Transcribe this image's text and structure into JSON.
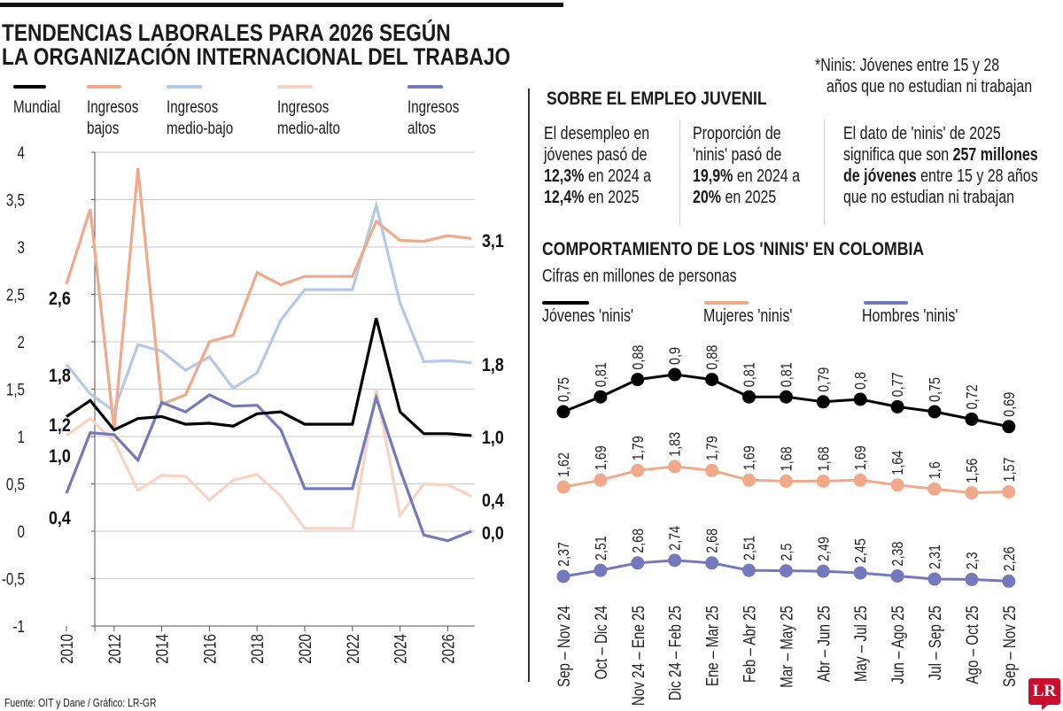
{
  "header": {
    "title_line1": "TENDENCIAS LABORALES PARA 2026 SEGÚN",
    "title_line2": "LA ORGANIZACIÓN INTERNACIONAL DEL TRABAJO"
  },
  "note": {
    "line1": "*Ninis: Jóvenes entre 15 y 28",
    "line2": "años que no estudian ni trabajan"
  },
  "youth": {
    "heading": "SOBRE EL EMPLEO JUVENIL",
    "col1": {
      "l1": "El desempleo en",
      "l2": "jóvenes pasó de",
      "l3b": "12,3%",
      "l3": " en 2024 a",
      "l4b": "12,4%",
      "l4": " en 2025"
    },
    "col2": {
      "l1": "Proporción de",
      "l2": "'ninis' pasó de",
      "l3b": "19,9%",
      "l3": " en 2024 a",
      "l4b": "20%",
      "l4": " en 2025"
    },
    "col3": {
      "l1": "El dato de 'ninis' de 2025",
      "l2": "significa que son ",
      "l2b": "257 millones",
      "l3b": "de jóvenes",
      "l3": " entre 15 y 28 años",
      "l4": "que no estudian ni trabajan"
    }
  },
  "footer": {
    "source": "Fuente: OIT y Dane / Gráfico: LR-GR",
    "logo": "LR"
  },
  "colors": {
    "mundial": "#000000",
    "bajos": "#f0a98a",
    "medio_bajo": "#b4c8e8",
    "medio_alto": "#f8d3c2",
    "altos": "#7479bd",
    "grid": "#c8c8c8",
    "logo": "#c8102e"
  },
  "chart_data": [
    {
      "type": "line",
      "title": "TENDENCIAS LABORALES PARA 2026 SEGÚN LA ORGANIZACIÓN INTERNACIONAL DEL TRABAJO",
      "x": [
        2010,
        2011,
        2012,
        2013,
        2014,
        2015,
        2016,
        2017,
        2018,
        2019,
        2020,
        2021,
        2022,
        2023,
        2024,
        2025,
        2026,
        2027
      ],
      "xticks": [
        "2010",
        "2012",
        "2014",
        "2016",
        "2018",
        "2020",
        "2022",
        "2024",
        "2026"
      ],
      "yticks": [
        "4",
        "3,5",
        "3",
        "2,5",
        "2",
        "1,5",
        "1",
        "0,5",
        "0",
        "-0,5",
        "-1"
      ],
      "ylim": [
        -1,
        4
      ],
      "grid": true,
      "legend_position": "top",
      "series": [
        {
          "name": "Mundial",
          "legend": [
            "Mundial"
          ],
          "color": "#000000",
          "values": [
            1.21,
            1.38,
            1.07,
            1.19,
            1.21,
            1.13,
            1.14,
            1.11,
            1.24,
            1.26,
            1.13,
            1.13,
            1.13,
            2.25,
            1.26,
            1.03,
            1.03,
            1.01
          ],
          "start_label": "1,2",
          "end_label": "1,0"
        },
        {
          "name": "Ingresos bajos",
          "legend": [
            "Ingresos",
            "bajos"
          ],
          "color": "#f0a98a",
          "values": [
            2.61,
            3.4,
            1.07,
            3.83,
            1.34,
            1.44,
            2.0,
            2.07,
            2.73,
            2.6,
            2.69,
            2.69,
            2.69,
            3.27,
            3.07,
            3.06,
            3.12,
            3.09
          ],
          "start_label": "2,6",
          "end_label": "3,1"
        },
        {
          "name": "Ingresos medio-bajo",
          "legend": [
            "Ingresos",
            "medio-bajo"
          ],
          "color": "#b4c8e8",
          "values": [
            1.76,
            1.45,
            1.27,
            1.97,
            1.9,
            1.7,
            1.84,
            1.51,
            1.67,
            2.23,
            2.55,
            2.55,
            2.55,
            3.44,
            2.41,
            1.79,
            1.8,
            1.78
          ],
          "start_label": "1,8",
          "end_label": "1,8"
        },
        {
          "name": "Ingresos medio-alto",
          "legend": [
            "Ingresos",
            "medio-alto"
          ],
          "color": "#f8d3c2",
          "values": [
            1.01,
            1.19,
            0.95,
            0.43,
            0.59,
            0.58,
            0.33,
            0.54,
            0.6,
            0.37,
            0.03,
            0.03,
            0.03,
            1.5,
            0.17,
            0.5,
            0.49,
            0.37
          ],
          "start_label": "1,0",
          "end_label": "0,4"
        },
        {
          "name": "Ingresos altos",
          "legend": [
            "Ingresos",
            "altos"
          ],
          "color": "#7479bd",
          "values": [
            0.4,
            1.04,
            1.02,
            0.75,
            1.36,
            1.26,
            1.44,
            1.32,
            1.33,
            1.07,
            0.45,
            0.45,
            0.45,
            1.41,
            0.65,
            -0.04,
            -0.1,
            0.0
          ],
          "start_label": "0,4",
          "end_label": "0,0"
        }
      ]
    },
    {
      "type": "line",
      "title": "COMPORTAMIENTO DE LOS 'NINIS' EN COLOMBIA",
      "subtitle": "Cifras en millones de personas",
      "categories": [
        "Sep – Nov 24",
        "Oct – Dic 24",
        "Nov 24 – Ene 25",
        "Dic 24 – Feb 25",
        "Ene – Mar 25",
        "Feb – Abr 25",
        "Mar – May 25",
        "Abr – Jun 25",
        "May – Jul 25",
        "Jun – Ago 25",
        "Jul – Sep 25",
        "Ago – Oct 25",
        "Sep – Nov 25"
      ],
      "legend_position": "top",
      "series": [
        {
          "name": "Jóvenes 'ninis'",
          "color": "#000000",
          "values": [
            0.75,
            0.81,
            0.88,
            0.9,
            0.88,
            0.81,
            0.81,
            0.79,
            0.8,
            0.77,
            0.75,
            0.72,
            0.69
          ],
          "labels": [
            "0,75",
            "0,81",
            "0,88",
            "0,9",
            "0,88",
            "0,81",
            "0,81",
            "0,79",
            "0,8",
            "0,77",
            "0,75",
            "0,72",
            "0,69"
          ]
        },
        {
          "name": "Mujeres 'ninis'",
          "color": "#f0a98a",
          "values": [
            1.62,
            1.69,
            1.79,
            1.83,
            1.79,
            1.69,
            1.68,
            1.68,
            1.69,
            1.64,
            1.6,
            1.56,
            1.57
          ],
          "labels": [
            "1,62",
            "1,69",
            "1,79",
            "1,83",
            "1,79",
            "1,69",
            "1,68",
            "1,68",
            "1,69",
            "1,64",
            "1,6",
            "1,56",
            "1,57"
          ]
        },
        {
          "name": "Hombres 'ninis'",
          "color": "#7479bd",
          "values": [
            2.37,
            2.51,
            2.68,
            2.74,
            2.68,
            2.51,
            2.5,
            2.49,
            2.45,
            2.38,
            2.31,
            2.3,
            2.26
          ],
          "labels": [
            "2,37",
            "2,51",
            "2,68",
            "2,74",
            "2,68",
            "2,51",
            "2,5",
            "2,49",
            "2,45",
            "2,38",
            "2,31",
            "2,3",
            "2,26"
          ]
        }
      ]
    }
  ]
}
